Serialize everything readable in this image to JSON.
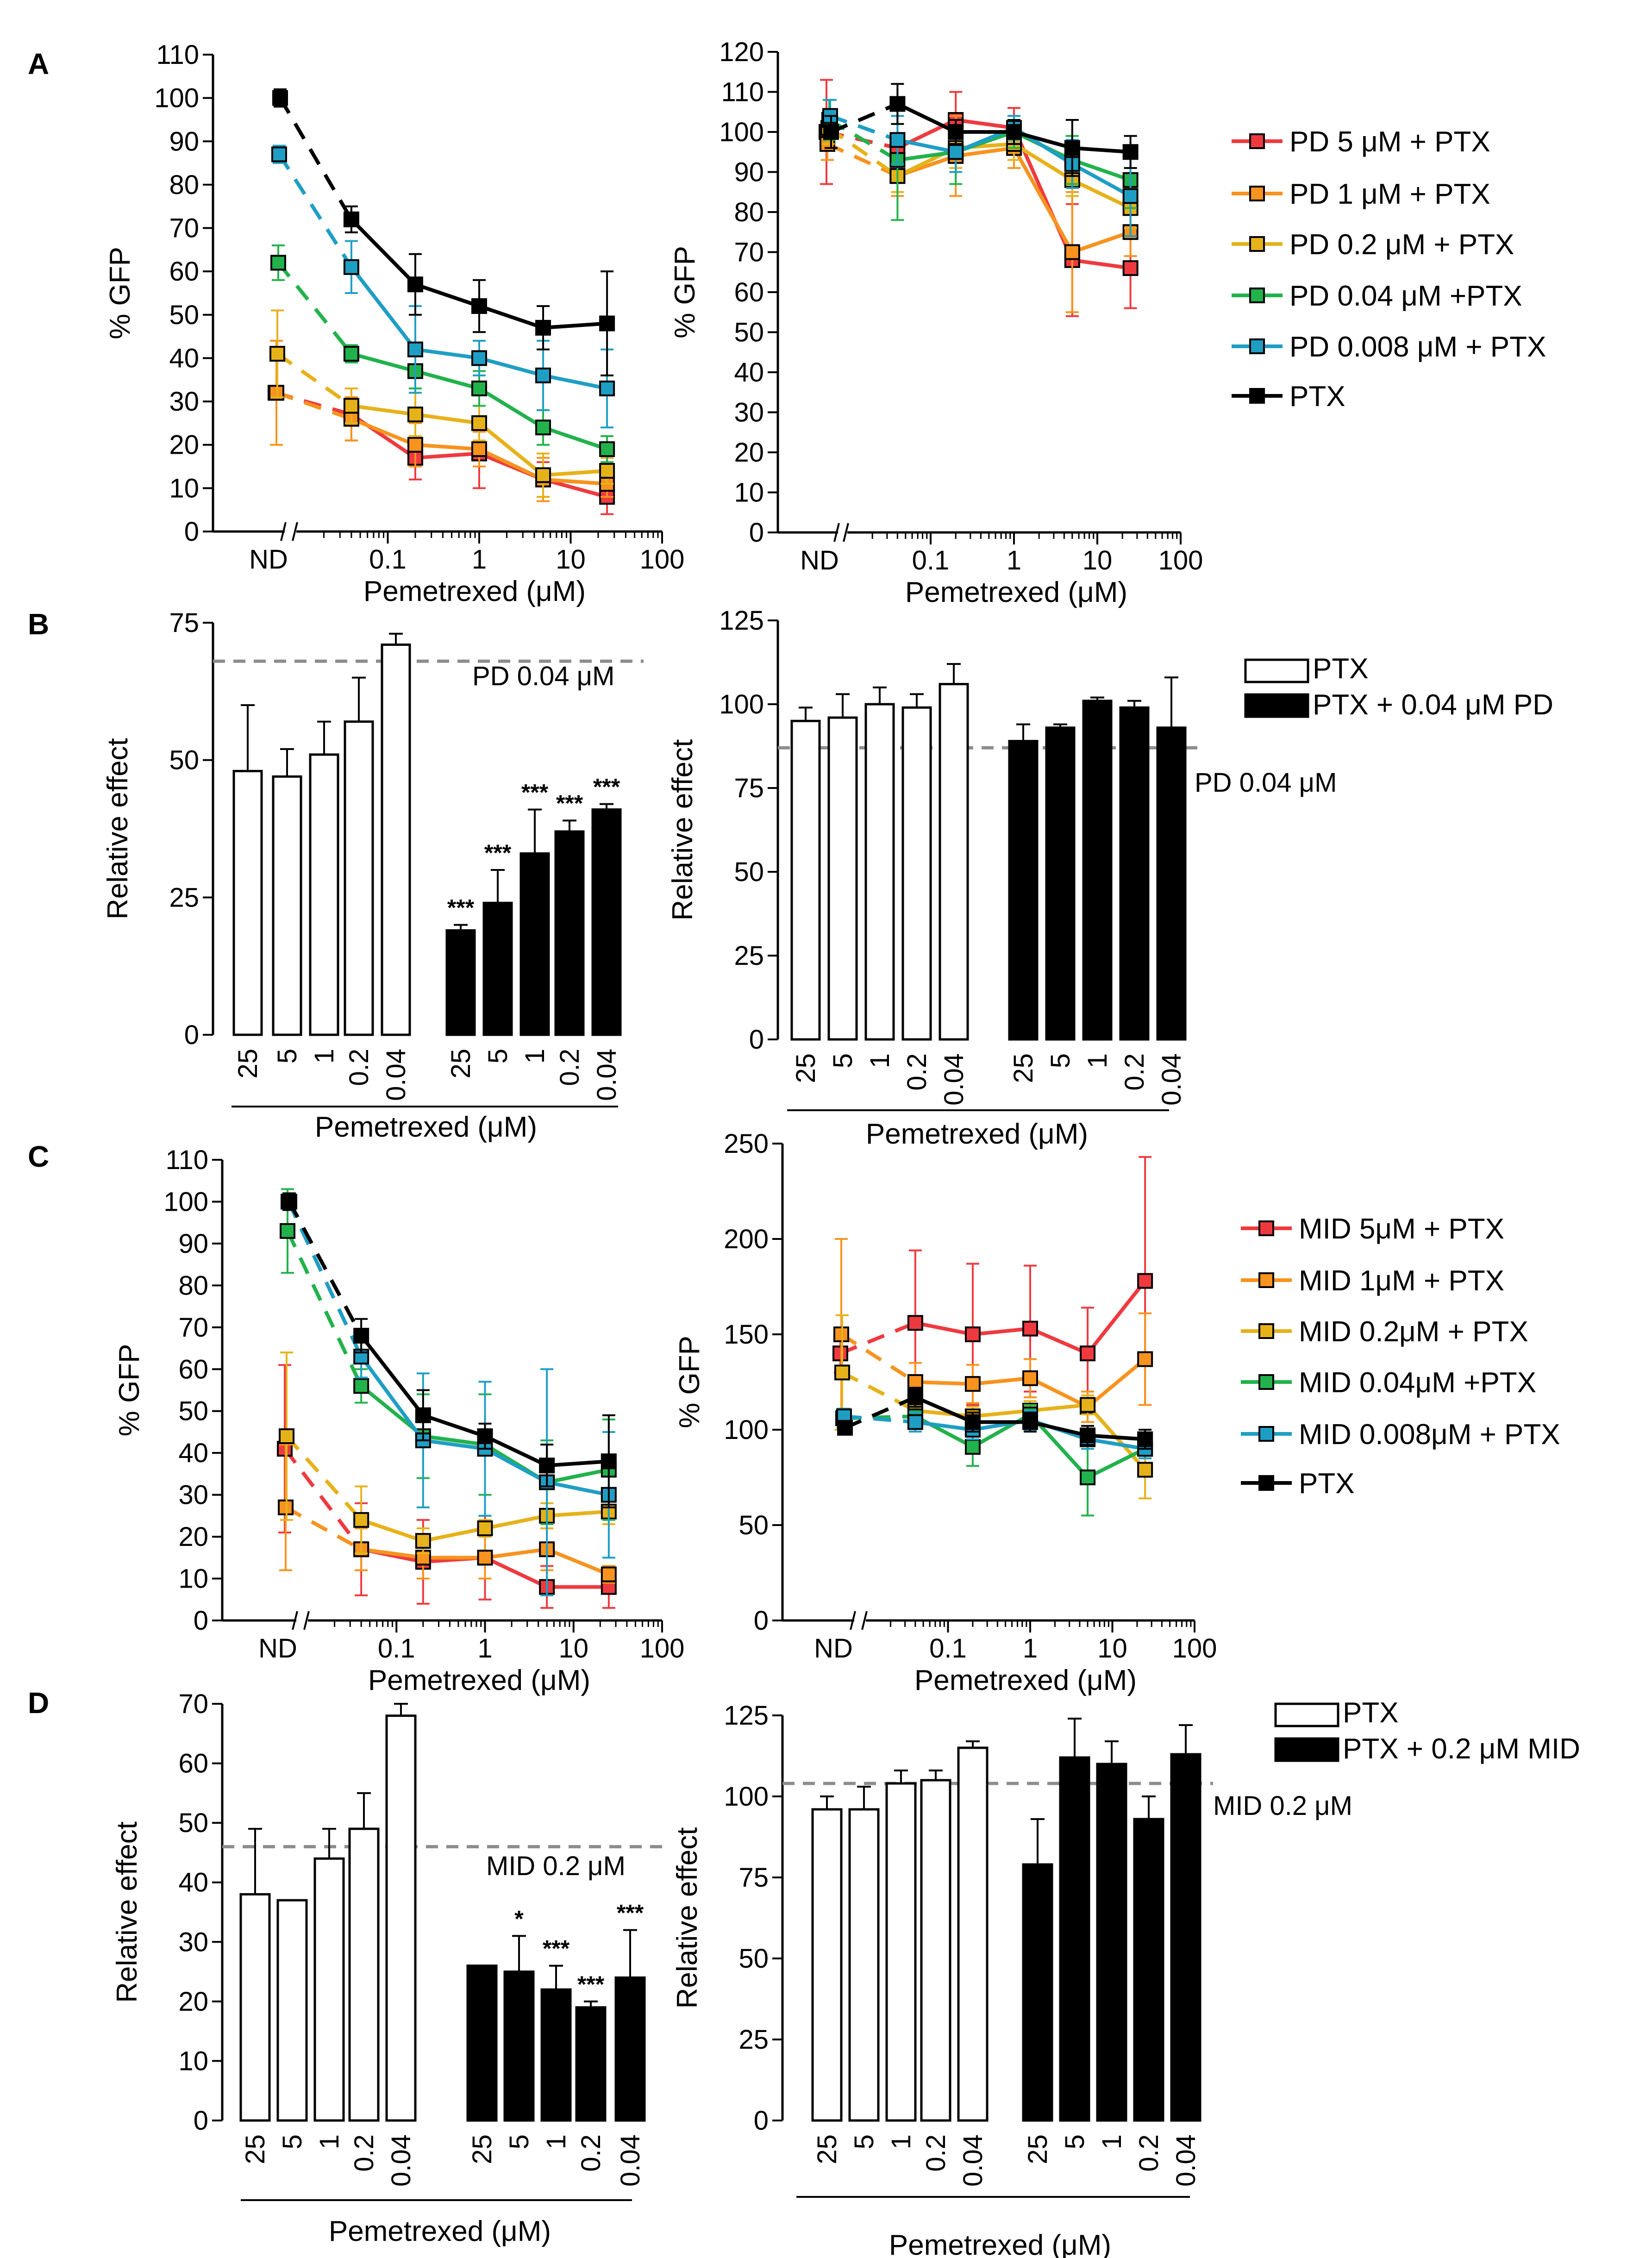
{
  "colors": {
    "pd5": "#ee3a3f",
    "pd1": "#f7931e",
    "pd02": "#e6b21a",
    "pd004": "#22b24c",
    "pd0008": "#1f9ec4",
    "ptx": "#000000",
    "ref": "#8c8c8c"
  },
  "chart_data": [
    {
      "id": "A-left",
      "panel": "A",
      "type": "line",
      "xscale": "log",
      "xlabel": "Pemetrexed (μM)",
      "ylabel": "% GFP",
      "ylim": [
        0,
        110
      ],
      "yticks": [
        0,
        10,
        20,
        30,
        40,
        50,
        60,
        70,
        80,
        90,
        100,
        110
      ],
      "xticklabels": [
        "ND",
        "0.1",
        "1",
        "10",
        "100"
      ],
      "x": [
        0.04,
        0.2,
        1,
        5,
        25
      ],
      "series": [
        {
          "name": "PD 5 μM + PTX",
          "color": "pd5",
          "nd": [
            32,
            0
          ],
          "values": [
            27,
            17,
            18,
            12,
            8
          ],
          "err": [
            6,
            5,
            8,
            4,
            4
          ]
        },
        {
          "name": "PD 1 μM + PTX",
          "color": "pd1",
          "nd": [
            32,
            12
          ],
          "values": [
            26,
            20,
            19,
            12,
            11
          ],
          "err": [
            5,
            5,
            4,
            5,
            3
          ]
        },
        {
          "name": "PD 0.2 μM + PTX",
          "color": "pd02",
          "nd": [
            41,
            10
          ],
          "values": [
            29,
            27,
            25,
            13,
            14
          ],
          "err": [
            4,
            5,
            4,
            5,
            3
          ]
        },
        {
          "name": "PD 0.04 μM +PTX",
          "color": "pd004",
          "nd": [
            62,
            4
          ],
          "values": [
            41,
            37,
            33,
            24,
            19
          ],
          "err": [
            2,
            4,
            4,
            4,
            3
          ]
        },
        {
          "name": "PD 0.008 μM + PTX",
          "color": "pd0008",
          "nd": [
            87,
            2
          ],
          "values": [
            61,
            42,
            40,
            36,
            33
          ],
          "err": [
            6,
            10,
            4,
            8,
            9
          ]
        },
        {
          "name": "PTX",
          "color": "ptx",
          "nd": [
            100,
            2
          ],
          "values": [
            72,
            57,
            52,
            47,
            48
          ],
          "err": [
            3,
            7,
            6,
            5,
            12
          ]
        }
      ]
    },
    {
      "id": "A-right",
      "panel": "A",
      "type": "line",
      "xscale": "log",
      "xlabel": "Pemetrexed (μM)",
      "ylabel": "% GFP",
      "ylim": [
        0,
        120
      ],
      "yticks": [
        0,
        10,
        20,
        30,
        40,
        50,
        60,
        70,
        80,
        90,
        100,
        110,
        120
      ],
      "xticklabels": [
        "ND",
        "0.1",
        "1",
        "10",
        "100"
      ],
      "x": [
        0.04,
        0.2,
        1,
        5,
        25
      ],
      "series": [
        {
          "name": "PD 5 μM + PTX",
          "color": "pd5",
          "nd": [
            100,
            13
          ],
          "values": [
            96,
            103,
            101,
            68,
            66
          ],
          "err": [
            3,
            7,
            5,
            14,
            10
          ]
        },
        {
          "name": "PD 1 μM + PTX",
          "color": "pd1",
          "nd": [
            97,
            4
          ],
          "values": [
            89,
            94,
            96,
            70,
            75
          ],
          "err": [
            5,
            10,
            5,
            15,
            6
          ]
        },
        {
          "name": "PD 0.2 μM + PTX",
          "color": "pd02",
          "nd": [
            101,
            4
          ],
          "values": [
            89,
            96,
            97,
            88,
            81
          ],
          "err": [
            4,
            5,
            4,
            4,
            5
          ]
        },
        {
          "name": "PD 0.04 μM +PTX",
          "color": "pd004",
          "nd": [
            103,
            5
          ],
          "values": [
            93,
            95,
            100,
            93,
            88
          ],
          "err": [
            15,
            8,
            4,
            6,
            7
          ]
        },
        {
          "name": "PD 0.008 μM + PTX",
          "color": "pd0008",
          "nd": [
            104,
            4
          ],
          "values": [
            98,
            95,
            101,
            92,
            84
          ],
          "err": [
            6,
            5,
            3,
            6,
            10
          ]
        },
        {
          "name": "PTX",
          "color": "ptx",
          "nd": [
            100,
            4
          ],
          "values": [
            107,
            100,
            100,
            96,
            95
          ],
          "err": [
            5,
            3,
            3,
            7,
            4
          ]
        }
      ]
    },
    {
      "id": "B-left",
      "panel": "B",
      "type": "bar",
      "xlabel": "Pemetrexed (μM)",
      "ylabel": "Relative effect",
      "ylim": [
        0,
        75
      ],
      "yticks": [
        0,
        25,
        50,
        75
      ],
      "categories": [
        "25",
        "5",
        "1",
        "0.2",
        "0.04"
      ],
      "reference": {
        "label": "PD 0.04 μM",
        "value": 68
      },
      "series": [
        {
          "name": "PTX",
          "fill": "open",
          "values": [
            48,
            47,
            51,
            57,
            71
          ],
          "err": [
            12,
            5,
            6,
            8,
            2
          ]
        },
        {
          "name": "PTX + 0.04 μM PD",
          "fill": "solid",
          "values": [
            19,
            24,
            33,
            37,
            41
          ],
          "err": [
            1,
            6,
            8,
            2,
            1
          ],
          "stars": [
            "***",
            "***",
            "***",
            "***",
            "***"
          ]
        }
      ]
    },
    {
      "id": "B-right",
      "panel": "B",
      "type": "bar",
      "xlabel": "Pemetrexed (μM)",
      "ylabel": "Relative effect",
      "ylim": [
        0,
        125
      ],
      "yticks": [
        0,
        25,
        50,
        75,
        100,
        125
      ],
      "categories": [
        "25",
        "5",
        "1",
        "0.2",
        "0.04"
      ],
      "reference": {
        "label": "PD 0.04 μM",
        "value": 87
      },
      "series": [
        {
          "name": "PTX",
          "fill": "open",
          "values": [
            95,
            96,
            100,
            99,
            106
          ],
          "err": [
            4,
            7,
            5,
            4,
            6
          ]
        },
        {
          "name": "PTX + 0.04 μM PD",
          "fill": "solid",
          "values": [
            89,
            93,
            101,
            99,
            93
          ],
          "err": [
            5,
            1,
            1,
            2,
            15
          ]
        }
      ],
      "legend": [
        "PTX",
        "PTX + 0.04 μM PD"
      ]
    },
    {
      "id": "C-left",
      "panel": "C",
      "type": "line",
      "xscale": "log",
      "xlabel": "Pemetrexed (μM)",
      "ylabel": "% GFP",
      "ylim": [
        0,
        110
      ],
      "yticks": [
        0,
        10,
        20,
        30,
        40,
        50,
        60,
        70,
        80,
        90,
        100,
        110
      ],
      "xticklabels": [
        "ND",
        "0.1",
        "1",
        "10",
        "100"
      ],
      "x": [
        0.04,
        0.2,
        1,
        5,
        25
      ],
      "series": [
        {
          "name": "MID 5μM + PTX",
          "color": "pd5",
          "nd": [
            41,
            20
          ],
          "values": [
            17,
            14,
            15,
            8,
            8
          ],
          "err": [
            11,
            10,
            10,
            5,
            5
          ]
        },
        {
          "name": "MID 1μM + PTX",
          "color": "pd1",
          "nd": [
            27,
            15
          ],
          "values": [
            17,
            15,
            15,
            17,
            11
          ],
          "err": [
            5,
            5,
            5,
            5,
            2
          ]
        },
        {
          "name": "MID 0.2μM + PTX",
          "color": "pd02",
          "nd": [
            44,
            20
          ],
          "values": [
            24,
            19,
            22,
            25,
            26
          ],
          "err": [
            8,
            3,
            2,
            3,
            3
          ]
        },
        {
          "name": "MID 0.04μM +PTX",
          "color": "pd004",
          "nd": [
            93,
            10
          ],
          "values": [
            56,
            44,
            42,
            33,
            36
          ],
          "err": [
            4,
            10,
            12,
            10,
            12
          ]
        },
        {
          "name": "MID 0.008μM + PTX",
          "color": "pd0008",
          "nd": [
            100,
            2
          ],
          "values": [
            63,
            43,
            41,
            33,
            30
          ],
          "err": [
            5,
            16,
            16,
            27,
            15
          ]
        },
        {
          "name": "PTX",
          "color": "ptx",
          "nd": [
            100,
            2
          ],
          "values": [
            68,
            49,
            44,
            37,
            38
          ],
          "err": [
            4,
            6,
            3,
            5,
            11
          ]
        }
      ]
    },
    {
      "id": "C-right",
      "panel": "C",
      "type": "line",
      "xscale": "log",
      "xlabel": "Pemetrexed (μM)",
      "ylabel": "% GFP",
      "ylim": [
        0,
        250
      ],
      "yticks": [
        0,
        50,
        100,
        150,
        200,
        250
      ],
      "xticklabels": [
        "ND",
        "0.1",
        "1",
        "10",
        "100"
      ],
      "x": [
        0.04,
        0.2,
        1,
        5,
        25
      ],
      "series": [
        {
          "name": "MID 5μM + PTX",
          "color": "pd5",
          "nd": [
            140,
            10
          ],
          "values": [
            156,
            150,
            153,
            140,
            178
          ],
          "err": [
            38,
            37,
            33,
            24,
            65
          ]
        },
        {
          "name": "MID 1μM + PTX",
          "color": "pd1",
          "nd": [
            150,
            50
          ],
          "values": [
            125,
            124,
            127,
            112,
            137
          ],
          "err": [
            10,
            10,
            10,
            8,
            24
          ]
        },
        {
          "name": "MID 0.2μM + PTX",
          "color": "pd02",
          "nd": [
            130,
            30
          ],
          "values": [
            110,
            107,
            110,
            113,
            79
          ],
          "err": [
            5,
            5,
            5,
            5,
            15
          ]
        },
        {
          "name": "MID 0.04μM +PTX",
          "color": "pd004",
          "nd": [
            106,
            5
          ],
          "values": [
            107,
            91,
            108,
            75,
            90
          ],
          "err": [
            5,
            10,
            5,
            20,
            5
          ]
        },
        {
          "name": "MID 0.008μM + PTX",
          "color": "pd0008",
          "nd": [
            107,
            4
          ],
          "values": [
            104,
            100,
            105,
            95,
            90
          ],
          "err": [
            5,
            5,
            5,
            5,
            5
          ]
        },
        {
          "name": "PTX",
          "color": "ptx",
          "nd": [
            101,
            3
          ],
          "values": [
            117,
            104,
            104,
            97,
            95
          ],
          "err": [
            5,
            5,
            5,
            5,
            5
          ]
        }
      ]
    },
    {
      "id": "D-left",
      "panel": "D",
      "type": "bar",
      "xlabel": "Pemetrexed (μM)",
      "ylabel": "Relative effect",
      "ylim": [
        0,
        70
      ],
      "yticks": [
        0,
        10,
        20,
        30,
        40,
        50,
        60,
        70
      ],
      "categories": [
        "25",
        "5",
        "1",
        "0.2",
        "0.04"
      ],
      "reference": {
        "label": "MID 0.2 μM",
        "value": 46
      },
      "series": [
        {
          "name": "PTX",
          "fill": "open",
          "values": [
            38,
            37,
            44,
            49,
            68
          ],
          "err": [
            11,
            0,
            5,
            6,
            2
          ]
        },
        {
          "name": "PTX + 0.2 μM MID",
          "fill": "solid",
          "values": [
            26,
            25,
            22,
            19,
            24
          ],
          "err": [
            0,
            6,
            4,
            1,
            8
          ],
          "stars": [
            "",
            "*",
            "***",
            "***",
            "***"
          ]
        }
      ]
    },
    {
      "id": "D-right",
      "panel": "D",
      "type": "bar",
      "xlabel": "Pemetrexed (μM)",
      "ylabel": "Relative effect",
      "ylim": [
        0,
        125
      ],
      "yticks": [
        0,
        25,
        50,
        75,
        100,
        125
      ],
      "categories": [
        "25",
        "5",
        "1",
        "0.2",
        "0.04"
      ],
      "reference": {
        "label": "MID 0.2 μM",
        "value": 104
      },
      "series": [
        {
          "name": "PTX",
          "fill": "open",
          "values": [
            96,
            96,
            104,
            105,
            115
          ],
          "err": [
            4,
            7,
            4,
            3,
            2
          ]
        },
        {
          "name": "PTX + 0.2 μM MID",
          "fill": "solid",
          "values": [
            79,
            112,
            110,
            93,
            113
          ],
          "err": [
            14,
            12,
            7,
            7,
            9
          ]
        }
      ],
      "legend": [
        "PTX",
        "PTX + 0.2 μM MID"
      ]
    }
  ],
  "line_legends": {
    "A": [
      "PD 5  μM + PTX",
      "PD 1  μM + PTX",
      "PD 0.2  μM + PTX",
      "PD 0.04  μM +PTX",
      "PD 0.008  μM + PTX",
      "PTX"
    ],
    "C": [
      "MID 5μM + PTX",
      "MID 1μM + PTX",
      "MID 0.2μM + PTX",
      "MID 0.04μM +PTX",
      "MID 0.008μM + PTX",
      "PTX"
    ]
  },
  "panel_letters": [
    "A",
    "B",
    "C",
    "D"
  ]
}
